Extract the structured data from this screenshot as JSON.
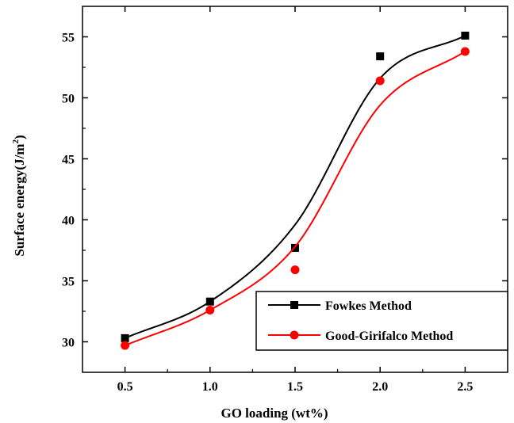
{
  "chart_data": {
    "type": "scatter",
    "xlabel": "GO loading (wt%)",
    "ylabel": "Surface energy(J/m",
    "ylabel_sup": "2",
    "ylabel_close": ")",
    "xlim": [
      0.25,
      2.75
    ],
    "ylim": [
      27.5,
      57.5
    ],
    "xticks": [
      0.5,
      1.0,
      1.5,
      2.0,
      2.5
    ],
    "xtick_labels": [
      "0.5",
      "1.0",
      "1.5",
      "2.0",
      "2.5"
    ],
    "yticks": [
      30,
      35,
      40,
      45,
      50,
      55
    ],
    "ytick_labels": [
      "30",
      "35",
      "40",
      "45",
      "50",
      "55"
    ],
    "grid": false,
    "legend_position": "bottom-right",
    "series": [
      {
        "name": "Fowkes Method",
        "marker": "square",
        "color": "#000000",
        "x": [
          0.5,
          1.0,
          1.5,
          2.0,
          2.5
        ],
        "y": [
          30.3,
          33.3,
          37.7,
          53.4,
          55.1
        ],
        "fit_y": [
          30.3,
          33.3,
          39.6,
          51.6,
          55.1
        ]
      },
      {
        "name": "Good-Girifalco Method",
        "marker": "circle",
        "color": "#ff0000",
        "x": [
          0.5,
          1.0,
          1.5,
          2.0,
          2.5
        ],
        "y": [
          29.7,
          32.6,
          35.9,
          51.4,
          53.8
        ],
        "fit_y": [
          29.7,
          32.6,
          37.8,
          49.4,
          53.8
        ]
      }
    ]
  }
}
